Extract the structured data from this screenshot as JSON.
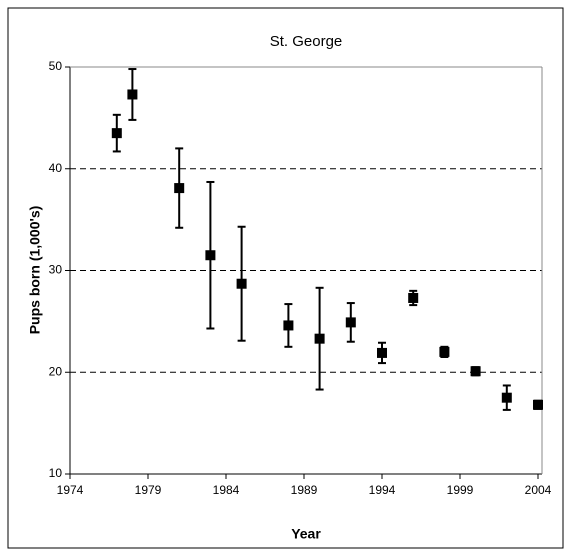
{
  "chart_data": {
    "type": "scatter",
    "title": "St. George",
    "x_label": "Year",
    "y_label": "Pups born (1,000's)",
    "x": [
      1977,
      1978,
      1981,
      1983,
      1985,
      1988,
      1990,
      1992,
      1994,
      1996,
      1998,
      2000,
      2002,
      2004
    ],
    "values": [
      43.5,
      47.3,
      38.1,
      31.5,
      28.7,
      24.6,
      23.3,
      24.9,
      21.9,
      27.3,
      22.0,
      20.1,
      17.5,
      16.8
    ],
    "errors": [
      1.8,
      2.5,
      3.9,
      7.2,
      5.6,
      2.1,
      5.0,
      1.9,
      1.0,
      0.7,
      0.5,
      0.4,
      1.2,
      0.4
    ],
    "color": "#000000",
    "xlim": [
      1974,
      2004
    ],
    "xticks": [
      1974,
      1979,
      1984,
      1989,
      1994,
      1999,
      2004
    ],
    "ylim": [
      10,
      50
    ],
    "yticks": [
      10,
      20,
      30,
      40,
      50
    ],
    "grid": true
  }
}
